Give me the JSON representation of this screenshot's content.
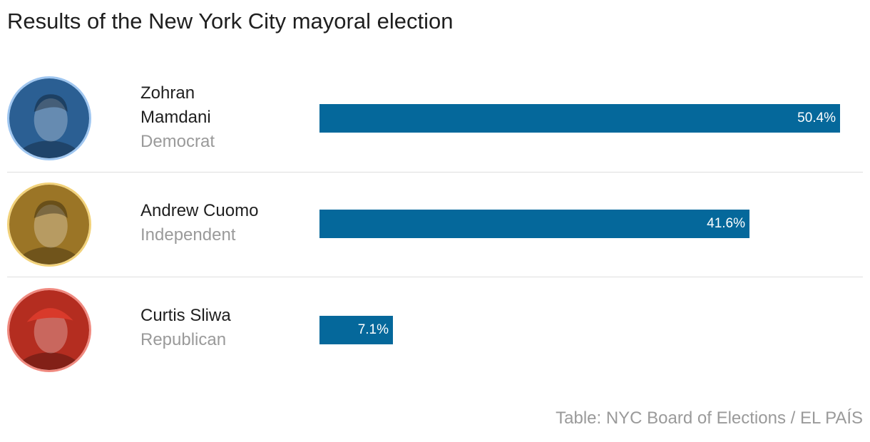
{
  "chart_data": {
    "type": "bar",
    "orientation": "horizontal",
    "title": "Results of the New York City mayoral election",
    "source": "Table: NYC Board of Elections / EL PAÍS",
    "categories": [
      "Zohran Mamdani",
      "Andrew Cuomo",
      "Curtis Sliwa"
    ],
    "values": [
      50.4,
      41.6,
      7.1
    ],
    "labels": [
      "50.4%",
      "41.6%",
      "7.1%"
    ],
    "value_max": 50.4,
    "rows": [
      {
        "name": "Zohran Mamdani",
        "name_line1": "Zohran",
        "name_line2": "Mamdani",
        "party": "Democrat",
        "value": 50.4,
        "label": "50.4%",
        "avatar_ring": "#9fc6f0",
        "avatar_tint": "#2b5f93",
        "portrait_label": "Zohran Mamdani"
      },
      {
        "name": "Andrew Cuomo",
        "name_line1": "Andrew Cuomo",
        "name_line2": "",
        "party": "Independent",
        "value": 41.6,
        "label": "41.6%",
        "avatar_ring": "#f2d27a",
        "avatar_tint": "#9b7526",
        "portrait_label": "Andrew Cuomo"
      },
      {
        "name": "Curtis Sliwa",
        "name_line1": "Curtis Sliwa",
        "name_line2": "",
        "party": "Republican",
        "value": 7.1,
        "label": "7.1%",
        "avatar_ring": "#f08a80",
        "avatar_tint": "#b42d20",
        "portrait_label": "Curtis Sliwa"
      }
    ],
    "colors": {
      "bar": "#05689b",
      "bar_text": "#ffffff",
      "party_text": "#9a9a9a"
    }
  }
}
